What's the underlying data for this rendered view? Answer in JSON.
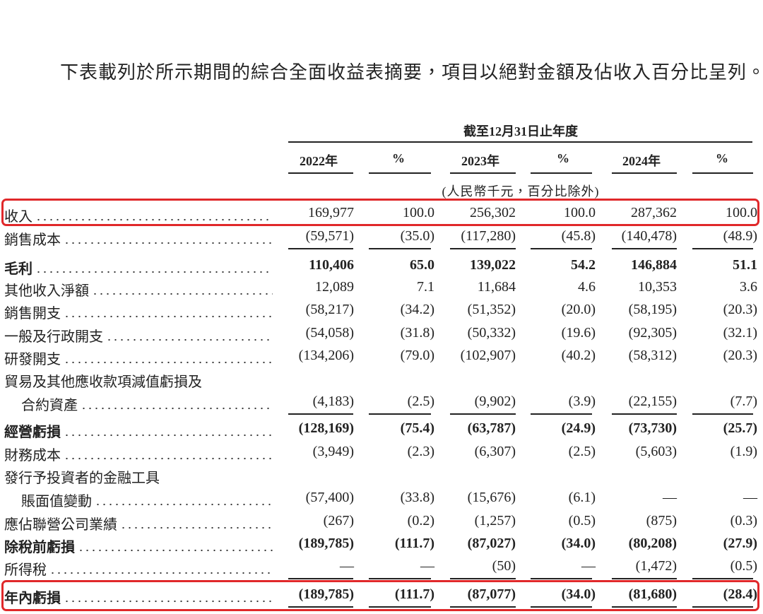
{
  "intro": "下表載列於所示期間的綜合全面收益表摘要，項目以絕對金額及佔收入百分比呈列。",
  "table": {
    "period_header": "截至12月31日止年度",
    "columns": [
      "2022年",
      "%",
      "2023年",
      "%",
      "2024年",
      "%"
    ],
    "unit_note": "(人民幣千元，百分比除外)",
    "rows": [
      {
        "label": [
          "收入"
        ],
        "values": [
          "169,977",
          "100.0",
          "256,302",
          "100.0",
          "287,362",
          "100.0"
        ],
        "bold": false
      },
      {
        "label": [
          "銷售成本"
        ],
        "values": [
          "(59,571)",
          "(35.0)",
          "(117,280)",
          "(45.8)",
          "(140,478)",
          "(48.9)"
        ],
        "bold": false
      },
      {
        "label": [
          "毛利"
        ],
        "values": [
          "110,406",
          "65.0",
          "139,022",
          "54.2",
          "146,884",
          "51.1"
        ],
        "bold": true
      },
      {
        "label": [
          "其他收入淨額"
        ],
        "values": [
          "12,089",
          "7.1",
          "11,684",
          "4.6",
          "10,353",
          "3.6"
        ],
        "bold": false
      },
      {
        "label": [
          "銷售開支"
        ],
        "values": [
          "(58,217)",
          "(34.2)",
          "(51,352)",
          "(20.0)",
          "(58,195)",
          "(20.3)"
        ],
        "bold": false
      },
      {
        "label": [
          "一般及行政開支"
        ],
        "values": [
          "(54,058)",
          "(31.8)",
          "(50,332)",
          "(19.6)",
          "(92,305)",
          "(32.1)"
        ],
        "bold": false
      },
      {
        "label": [
          "研發開支"
        ],
        "values": [
          "(134,206)",
          "(79.0)",
          "(102,907)",
          "(40.2)",
          "(58,312)",
          "(20.3)"
        ],
        "bold": false
      },
      {
        "label": [
          "貿易及其他應收款項減值虧損及",
          "合約資產"
        ],
        "values": [
          "(4,183)",
          "(2.5)",
          "(9,902)",
          "(3.9)",
          "(22,155)",
          "(7.7)"
        ],
        "bold": false
      },
      {
        "label": [
          "經營虧損"
        ],
        "values": [
          "(128,169)",
          "(75.4)",
          "(63,787)",
          "(24.9)",
          "(73,730)",
          "(25.7)"
        ],
        "bold": true
      },
      {
        "label": [
          "財務成本"
        ],
        "values": [
          "(3,949)",
          "(2.3)",
          "(6,307)",
          "(2.5)",
          "(5,603)",
          "(1.9)"
        ],
        "bold": false
      },
      {
        "label": [
          "發行予投資者的金融工具",
          "賬面值變動"
        ],
        "values": [
          "(57,400)",
          "(33.8)",
          "(15,676)",
          "(6.1)",
          "—",
          "—"
        ],
        "bold": false
      },
      {
        "label": [
          "應佔聯營公司業績"
        ],
        "values": [
          "(267)",
          "(0.2)",
          "(1,257)",
          "(0.5)",
          "(875)",
          "(0.3)"
        ],
        "bold": false
      },
      {
        "label": [
          "除稅前虧損"
        ],
        "values": [
          "(189,785)",
          "(111.7)",
          "(87,027)",
          "(34.0)",
          "(80,208)",
          "(27.9)"
        ],
        "bold": true
      },
      {
        "label": [
          "所得稅"
        ],
        "values": [
          "—",
          "—",
          "(50)",
          "—",
          "(1,472)",
          "(0.5)"
        ],
        "bold": false
      },
      {
        "label": [
          "年內虧損"
        ],
        "values": [
          "(189,785)",
          "(111.7)",
          "(87,077)",
          "(34.0)",
          "(81,680)",
          "(28.4)"
        ],
        "bold": true
      }
    ]
  }
}
